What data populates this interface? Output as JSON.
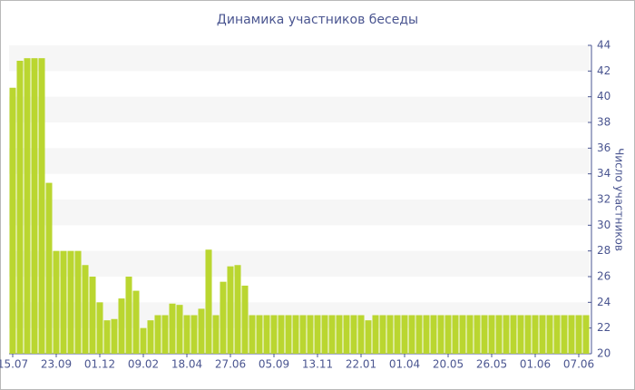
{
  "chart_data": {
    "type": "bar",
    "title": "Динамика участников беседы",
    "y_label": "Число участников",
    "categories": [
      "15.07",
      null,
      null,
      null,
      null,
      null,
      "23.09",
      null,
      null,
      null,
      null,
      null,
      "01.12",
      null,
      null,
      null,
      null,
      null,
      "09.02",
      null,
      null,
      null,
      null,
      null,
      "18.04",
      null,
      null,
      null,
      null,
      null,
      "27.06",
      null,
      null,
      null,
      null,
      null,
      "05.09",
      null,
      null,
      null,
      null,
      null,
      "13.11",
      null,
      null,
      null,
      null,
      null,
      "22.01",
      null,
      null,
      null,
      null,
      null,
      "01.04",
      null,
      null,
      null,
      null,
      null,
      "20.05",
      null,
      null,
      null,
      null,
      null,
      "26.05",
      null,
      null,
      null,
      null,
      null,
      "01.06",
      null,
      null,
      null,
      null,
      null,
      "07.06",
      null
    ],
    "values": [
      40.7,
      42.8,
      43,
      43,
      43,
      33.3,
      28,
      28,
      28,
      28,
      26.9,
      26,
      24,
      22.6,
      22.7,
      24.3,
      26,
      24.9,
      22,
      22.6,
      23,
      23,
      23.9,
      23.8,
      23,
      23,
      23.5,
      28.1,
      23,
      25.6,
      26.8,
      26.9,
      25.3,
      23,
      23,
      23,
      23,
      23,
      23,
      23,
      23,
      23,
      23,
      23,
      23,
      23,
      23,
      23,
      23,
      22.6,
      23,
      23,
      23,
      23,
      23,
      23,
      23,
      23,
      23,
      23,
      23,
      23,
      23,
      23,
      23,
      23,
      23,
      23,
      23,
      23,
      23,
      23,
      23,
      23,
      23,
      23,
      23,
      23,
      23,
      23
    ],
    "color": "#bad630",
    "ylim": [
      20,
      44
    ],
    "yticks": [
      20,
      22,
      24,
      26,
      28,
      30,
      32,
      34,
      36,
      38,
      40,
      42,
      44
    ],
    "y_axis_side": "right",
    "grid": true
  }
}
